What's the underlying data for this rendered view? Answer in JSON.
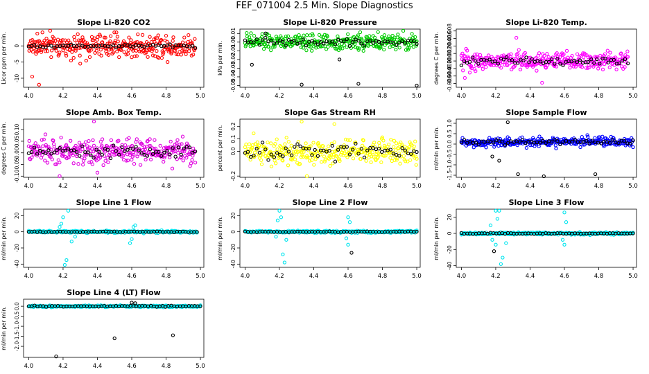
{
  "main_title": "FEF_071004  2.5 Min. Slope Diagnostics",
  "chart_data": [
    {
      "type": "scatter",
      "title": "Slope Li-820 CO2",
      "ylabel": "Licor ppm per min.",
      "color": "#ff0000",
      "xlim": [
        3.97,
        5.02
      ],
      "ylim": [
        -12.8,
        5.2
      ],
      "xticks": [
        "4.0",
        "4.2",
        "4.4",
        "4.6",
        "4.8",
        "5.0"
      ],
      "xtick_values": [
        4.0,
        4.2,
        4.4,
        4.6,
        4.8,
        5.0
      ],
      "yticks": [
        "-10",
        "-5",
        "0"
      ],
      "ytick_values": [
        -10,
        -5,
        0
      ],
      "colored_spread": 3.2,
      "black_spread": 0.6,
      "bias": 0,
      "x_max": 4.97,
      "outliers": [
        [
          4.06,
          -12
        ],
        [
          4.02,
          -9.5
        ],
        [
          4.3,
          -5.5
        ],
        [
          4.6,
          -3.5
        ],
        [
          4.08,
          4.2
        ],
        [
          4.05,
          3.8
        ]
      ],
      "spikes": []
    },
    {
      "type": "scatter",
      "title": "Slope Li-820 Pressure",
      "ylabel": "kPa per min.",
      "color": "#00cc00",
      "xlim": [
        3.97,
        5.02
      ],
      "ylim": [
        -0.052,
        0.015
      ],
      "xticks": [
        "4.0",
        "4.2",
        "4.4",
        "4.6",
        "4.8",
        "5.0"
      ],
      "xtick_values": [
        4.0,
        4.2,
        4.4,
        4.6,
        4.8,
        5.0
      ],
      "yticks": [
        "-0.05",
        "-0.04",
        "-0.03",
        "-0.02",
        "-0.01",
        "0.00",
        "0.01"
      ],
      "ytick_values": [
        -0.05,
        -0.04,
        -0.03,
        -0.02,
        -0.01,
        0.0,
        0.01
      ],
      "colored_spread": 0.008,
      "black_spread": 0.005,
      "bias": 0,
      "x_max": 5.0,
      "outliers": [
        [
          4.33,
          -0.049
        ],
        [
          4.66,
          -0.048
        ],
        [
          5.0,
          -0.05
        ],
        [
          4.04,
          -0.026
        ],
        [
          4.55,
          -0.02
        ],
        [
          4.12,
          0.01
        ]
      ],
      "spikes": []
    },
    {
      "type": "scatter",
      "title": "Slope Li-820 Temp.",
      "ylabel": "degrees C per min.",
      "color": "#ff00ff",
      "xlim": [
        3.97,
        5.02
      ],
      "ylim": [
        -0.007,
        0.0085
      ],
      "xticks": [
        "4.0",
        "4.2",
        "4.4",
        "4.6",
        "4.8",
        "5.0"
      ],
      "xtick_values": [
        4.0,
        4.2,
        4.4,
        4.6,
        4.8,
        5.0
      ],
      "yticks": [
        "-0.006",
        "-0.004",
        "-0.002",
        "0.000",
        "0.002",
        "0.004",
        "0.006",
        "0.008"
      ],
      "ytick_values": [
        -0.006,
        -0.004,
        -0.002,
        0.0,
        0.002,
        0.004,
        0.006,
        0.008
      ],
      "colored_spread": 0.0022,
      "black_spread": 0.0012,
      "bias": 0,
      "x_max": 4.97,
      "outliers": [
        [
          4.32,
          0.0062
        ],
        [
          4.47,
          -0.0058
        ],
        [
          4.02,
          -0.0045
        ]
      ],
      "spikes": []
    },
    {
      "type": "scatter",
      "title": "Slope Amb. Box Temp.",
      "ylabel": "degrees C per min.",
      "color": "#e000e0",
      "xlim": [
        3.97,
        5.02
      ],
      "ylim": [
        -0.105,
        0.145
      ],
      "xticks": [
        "4.0",
        "4.2",
        "4.4",
        "4.6",
        "4.8",
        "5.0"
      ],
      "xtick_values": [
        4.0,
        4.2,
        4.4,
        4.6,
        4.8,
        5.0
      ],
      "yticks": [
        "-0.10",
        "-0.05",
        "0.00",
        "0.05",
        "0.10"
      ],
      "ytick_values": [
        -0.1,
        -0.05,
        0.0,
        0.05,
        0.1
      ],
      "colored_spread": 0.045,
      "black_spread": 0.03,
      "bias": 0.005,
      "x_max": 4.97,
      "outliers": [
        [
          4.38,
          0.135
        ],
        [
          4.18,
          -0.1
        ],
        [
          4.4,
          -0.085
        ]
      ],
      "spikes": []
    },
    {
      "type": "scatter",
      "title": "Slope Gas Stream RH",
      "ylabel": "percent per min.",
      "color": "#ffff00",
      "xlim": [
        3.97,
        5.02
      ],
      "ylim": [
        -0.21,
        0.26
      ],
      "xticks": [
        "4.0",
        "4.2",
        "4.4",
        "4.6",
        "4.8",
        "5.0"
      ],
      "xtick_values": [
        4.0,
        4.2,
        4.4,
        4.6,
        4.8,
        5.0
      ],
      "yticks": [
        "-0.2",
        "0.0",
        "0.1",
        "0.2"
      ],
      "ytick_values": [
        -0.2,
        0.0,
        0.1,
        0.2
      ],
      "colored_spread": 0.09,
      "black_spread": 0.08,
      "bias": 0,
      "x_max": 5.0,
      "outliers": [
        [
          4.33,
          0.24
        ],
        [
          4.36,
          -0.2
        ],
        [
          4.52,
          0.22
        ]
      ],
      "spikes": []
    },
    {
      "type": "scatter",
      "title": "Slope Sample Flow",
      "ylabel": "ml/min per min.",
      "color": "#0000ff",
      "xlim": [
        3.97,
        5.02
      ],
      "ylim": [
        -1.6,
        1.2
      ],
      "xticks": [
        "4.0",
        "4.2",
        "4.4",
        "4.6",
        "4.8",
        "5.0"
      ],
      "xtick_values": [
        4.0,
        4.2,
        4.4,
        4.6,
        4.8,
        5.0
      ],
      "yticks": [
        "-1.5",
        "-1.0",
        "-0.5",
        "0.0",
        "0.5",
        "1.0"
      ],
      "ytick_values": [
        -1.5,
        -1.0,
        -0.5,
        0.0,
        0.5,
        1.0
      ],
      "colored_spread": 0.2,
      "black_spread": 0.15,
      "bias": 0.1,
      "x_max": 5.0,
      "outliers": [
        [
          4.27,
          1.05
        ],
        [
          4.48,
          -1.55
        ],
        [
          4.78,
          -1.45
        ],
        [
          4.33,
          -1.45
        ],
        [
          4.22,
          -0.8
        ],
        [
          4.18,
          -0.6
        ]
      ],
      "spikes": []
    },
    {
      "type": "scatter",
      "title": "Slope Line 1 Flow",
      "ylabel": "ml/min per min.",
      "color": "#00e5ee",
      "xlim": [
        3.97,
        5.02
      ],
      "ylim": [
        -44,
        28
      ],
      "xticks": [
        "4.0",
        "4.2",
        "4.4",
        "4.6",
        "4.8",
        "5.0"
      ],
      "xtick_values": [
        4.0,
        4.2,
        4.4,
        4.6,
        4.8,
        5.0
      ],
      "yticks": [
        "-40",
        "-20",
        "0",
        "20"
      ],
      "ytick_values": [
        -40,
        -20,
        0,
        20
      ],
      "colored_spread": 1.2,
      "black_spread": 0.6,
      "bias": 0,
      "x_max": 4.98,
      "outliers": [],
      "spikes": [
        [
          4.21,
          -41
        ],
        [
          4.22,
          -35
        ],
        [
          4.23,
          26
        ],
        [
          4.2,
          18
        ],
        [
          4.19,
          10
        ],
        [
          4.25,
          -12
        ],
        [
          4.27,
          -6
        ],
        [
          4.18,
          6
        ],
        [
          4.59,
          -14
        ],
        [
          4.6,
          -9
        ],
        [
          4.61,
          6
        ],
        [
          4.62,
          8
        ]
      ]
    },
    {
      "type": "scatter",
      "title": "Slope Line 2 Flow",
      "ylabel": "ml/min per min.",
      "color": "#00e5ee",
      "xlim": [
        3.97,
        5.02
      ],
      "ylim": [
        -44,
        28
      ],
      "xticks": [
        "4.0",
        "4.2",
        "4.4",
        "4.6",
        "4.8",
        "5.0"
      ],
      "xtick_values": [
        4.0,
        4.2,
        4.4,
        4.6,
        4.8,
        5.0
      ],
      "yticks": [
        "-40",
        "-20",
        "0",
        "20"
      ],
      "ytick_values": [
        -40,
        -20,
        0,
        20
      ],
      "colored_spread": 1.2,
      "black_spread": 0.6,
      "bias": 0,
      "x_max": 5.0,
      "outliers": [
        [
          4.62,
          -26
        ]
      ],
      "spikes": [
        [
          4.2,
          26
        ],
        [
          4.21,
          18
        ],
        [
          4.23,
          -38
        ],
        [
          4.22,
          -28
        ],
        [
          4.24,
          -10
        ],
        [
          4.19,
          14
        ],
        [
          4.18,
          -6
        ],
        [
          4.6,
          18
        ],
        [
          4.61,
          12
        ],
        [
          4.6,
          -16
        ],
        [
          4.59,
          -8
        ]
      ]
    },
    {
      "type": "scatter",
      "title": "Slope Line 3 Flow",
      "ylabel": "ml/min per min.",
      "color": "#00e5ee",
      "xlim": [
        3.97,
        5.02
      ],
      "ylim": [
        -42,
        30
      ],
      "xticks": [
        "4.0",
        "4.2",
        "4.4",
        "4.6",
        "4.8",
        "5.0"
      ],
      "xtick_values": [
        4.0,
        4.2,
        4.4,
        4.6,
        4.8,
        5.0
      ],
      "yticks": [
        "-40",
        "-20",
        "0",
        "20"
      ],
      "ytick_values": [
        -40,
        -20,
        0,
        20
      ],
      "colored_spread": 1.3,
      "black_spread": 0.7,
      "bias": 0,
      "x_max": 5.0,
      "outliers": [
        [
          4.19,
          -22
        ]
      ],
      "spikes": [
        [
          4.2,
          28
        ],
        [
          4.22,
          28
        ],
        [
          4.21,
          18
        ],
        [
          4.23,
          -38
        ],
        [
          4.24,
          -30
        ],
        [
          4.2,
          -14
        ],
        [
          4.18,
          -8
        ],
        [
          4.17,
          10
        ],
        [
          4.26,
          -12
        ],
        [
          4.6,
          26
        ],
        [
          4.61,
          14
        ],
        [
          4.6,
          -14
        ],
        [
          4.59,
          -8
        ]
      ]
    },
    {
      "type": "scatter",
      "title": "Slope Line 4 (LT) Flow",
      "ylabel": "ml/min per min.",
      "color": "#00e5ee",
      "xlim": [
        3.97,
        5.02
      ],
      "ylim": [
        -2.55,
        0.35
      ],
      "xticks": [
        "4.0",
        "4.2",
        "4.4",
        "4.6",
        "4.8",
        "5.0"
      ],
      "xtick_values": [
        4.0,
        4.2,
        4.4,
        4.6,
        4.8,
        5.0
      ],
      "yticks": [
        "-2.0",
        "-1.5",
        "-1.0",
        "-0.5",
        "0.0"
      ],
      "ytick_values": [
        -2.0,
        -1.5,
        -1.0,
        -0.5,
        0.0
      ],
      "colored_spread": 0.04,
      "black_spread": 0.04,
      "bias": 0,
      "x_max": 5.0,
      "outliers": [
        [
          4.16,
          -2.5
        ],
        [
          4.5,
          -1.6
        ],
        [
          4.84,
          -1.45
        ],
        [
          4.6,
          0.18
        ],
        [
          4.62,
          0.15
        ]
      ],
      "spikes": []
    }
  ]
}
